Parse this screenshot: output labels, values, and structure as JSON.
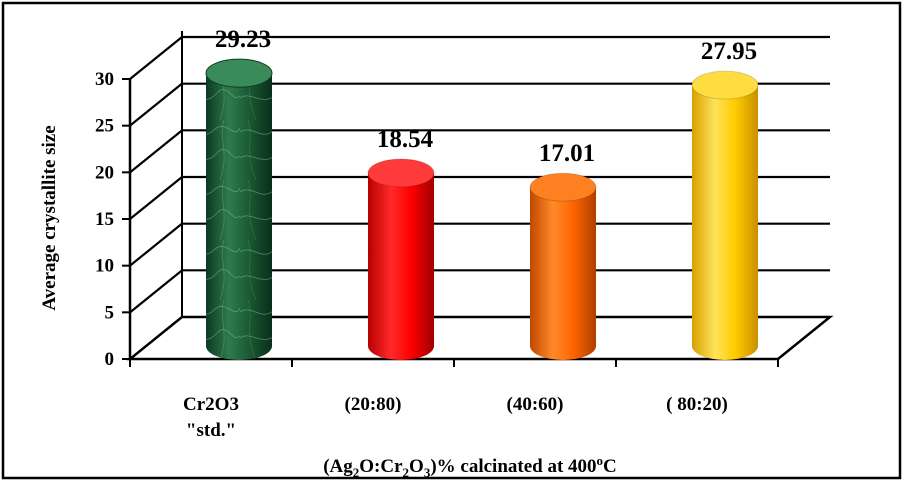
{
  "chart_data": {
    "type": "bar",
    "style": "3d-cylinder",
    "ylabel": "Average crystallite size",
    "xlabel_parts": [
      "(Ag",
      "2",
      "O:Cr",
      "2",
      "O",
      "3",
      ")% calcinated at 400",
      "o",
      "C"
    ],
    "ylim": [
      0,
      30
    ],
    "yticks": [
      "0",
      "5",
      "10",
      "15",
      "20",
      "25",
      "30"
    ],
    "grid": true,
    "legend": "none",
    "categories": [
      {
        "lines": [
          "Cr2O3",
          "\"std.\""
        ]
      },
      {
        "lines": [
          "(20:80)"
        ]
      },
      {
        "lines": [
          "(40:60)"
        ]
      },
      {
        "lines": [
          "( 80:20)"
        ]
      }
    ],
    "values": [
      29.23,
      18.54,
      17.01,
      27.95
    ],
    "data_labels": [
      "29.23",
      "18.54",
      "17.01",
      "27.95"
    ],
    "colors": [
      "#1f5e3a",
      "#ff0000",
      "#ff6600",
      "#ffcc00"
    ]
  }
}
